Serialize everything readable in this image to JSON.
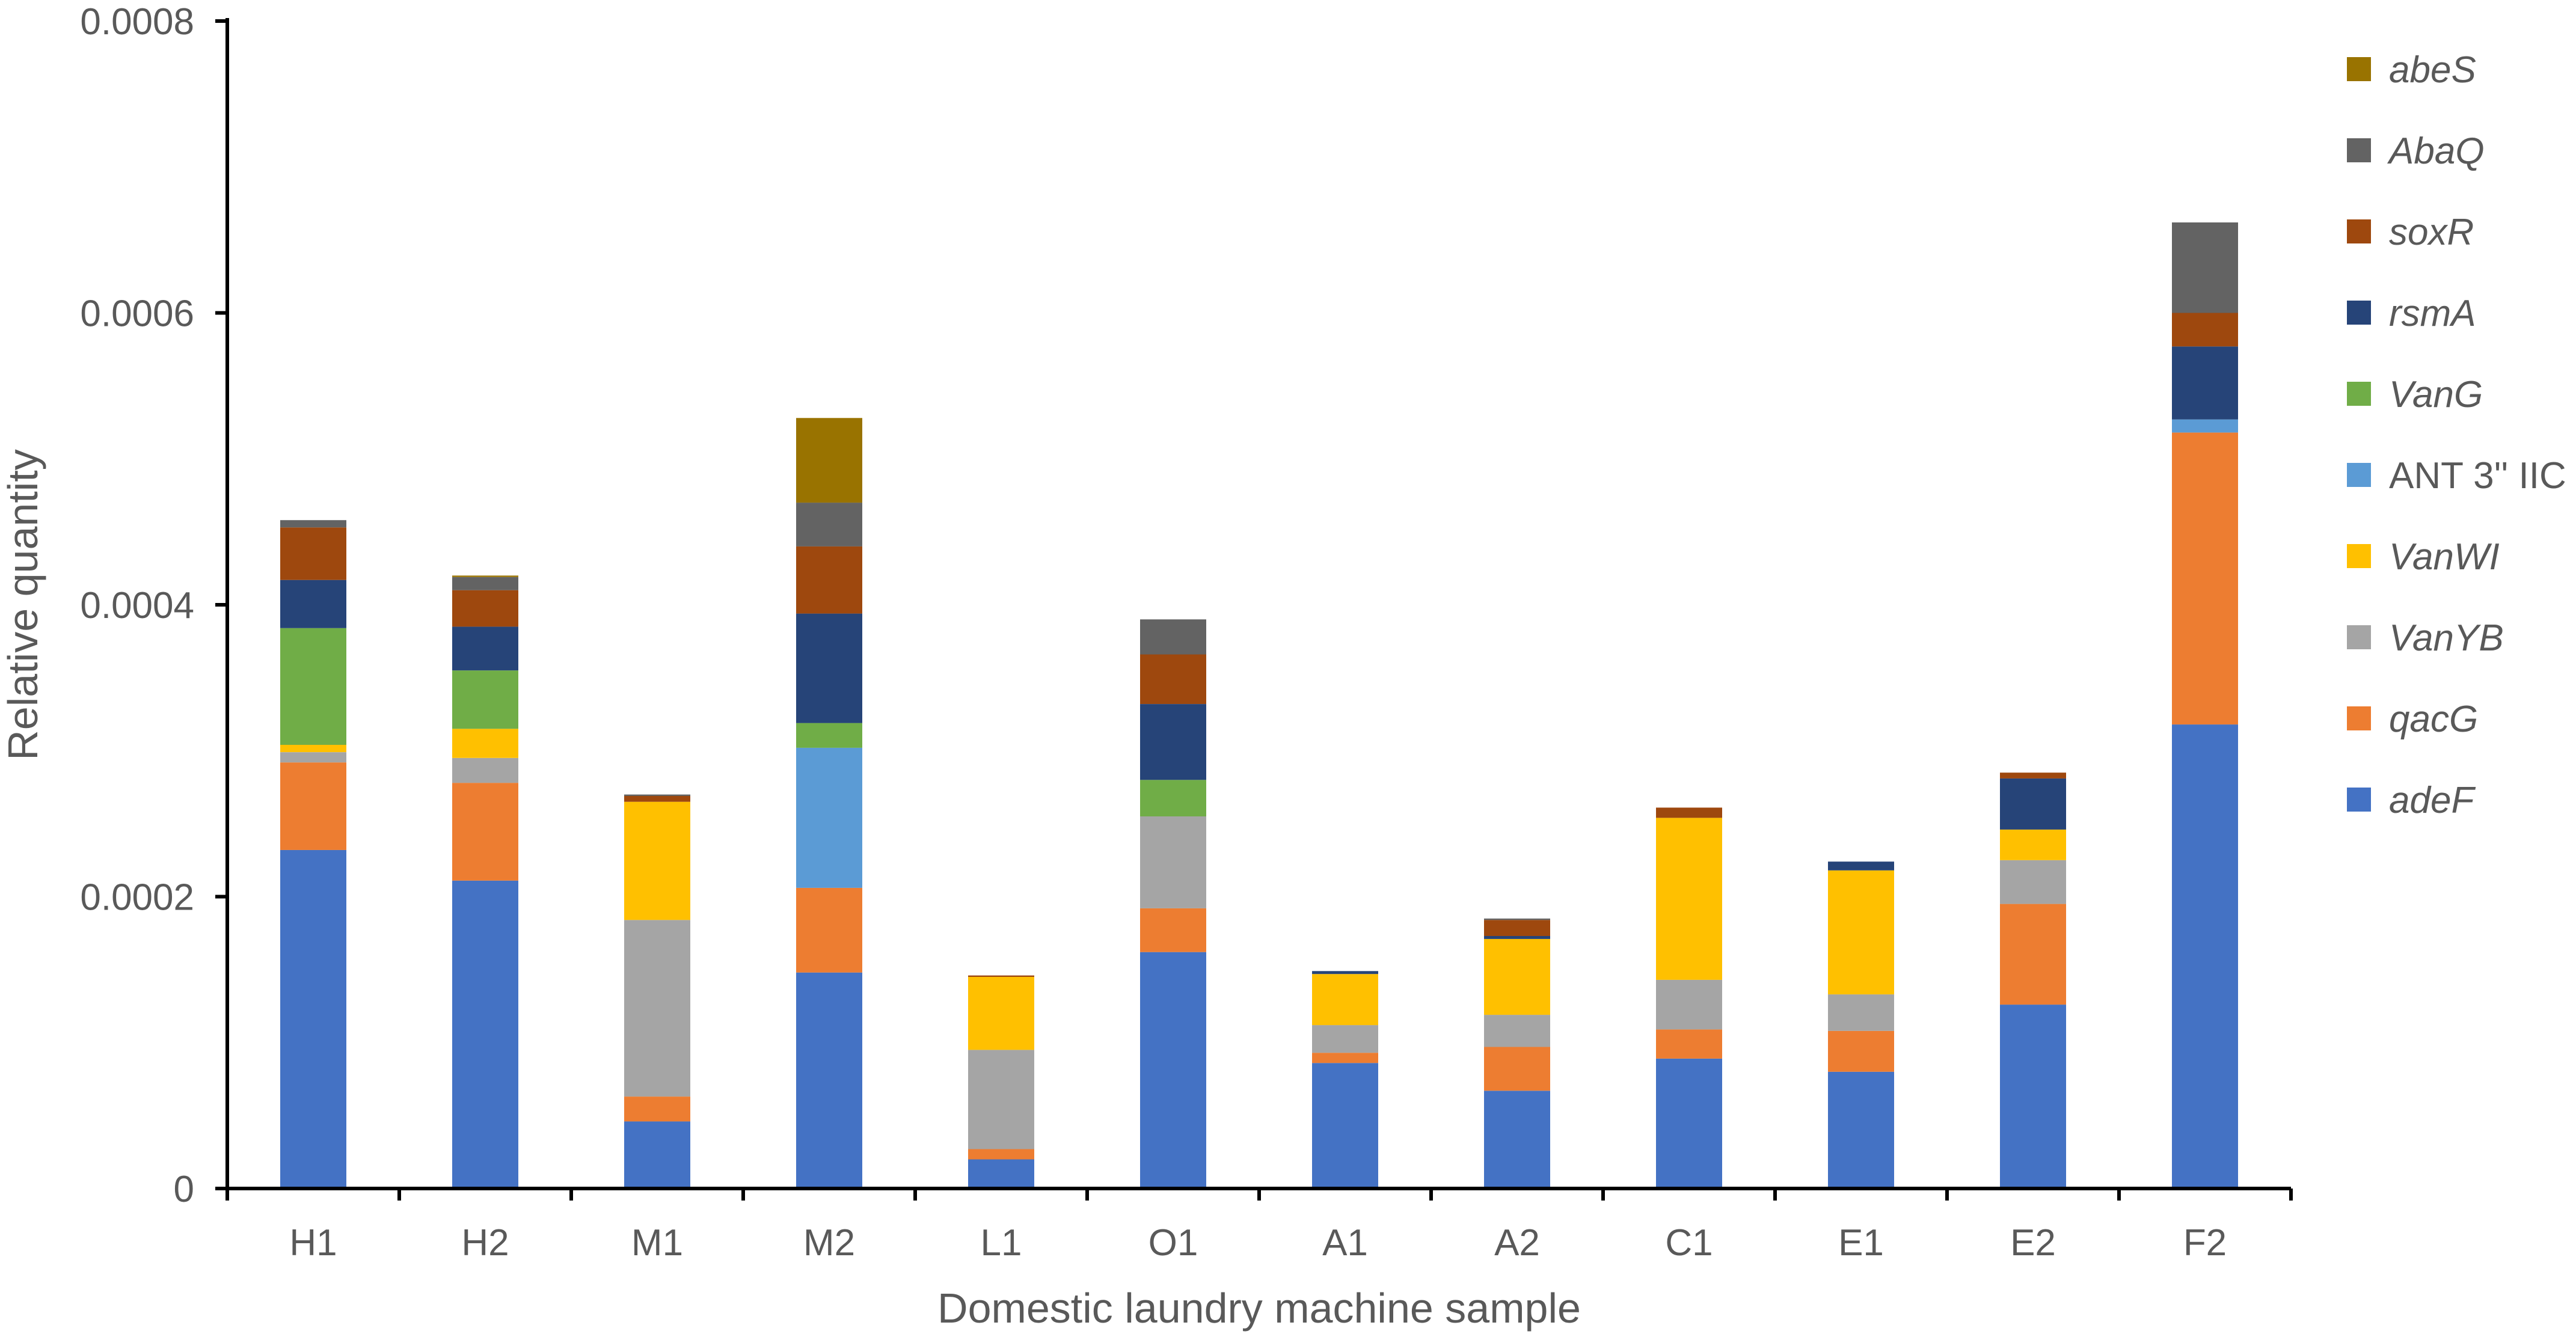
{
  "chart_data": {
    "type": "bar",
    "stacked": true,
    "xlabel": "Domestic laundry machine sample",
    "ylabel": "Relative quantity",
    "ylim": [
      0,
      0.0008
    ],
    "yticks": [
      "0",
      "0.0002",
      "0.0004",
      "0.0006",
      "0.0008"
    ],
    "grid": false,
    "legend_position": "right",
    "categories": [
      "H1",
      "H2",
      "M1",
      "M2",
      "L1",
      "O1",
      "A1",
      "A2",
      "C1",
      "E1",
      "E2",
      "F2"
    ],
    "series": [
      {
        "name": "adeF",
        "italic": true,
        "color": "#4472C4",
        "values": [
          0.000232,
          0.000211,
          4.6e-05,
          0.000148,
          2e-05,
          0.000162,
          8.6e-05,
          6.7e-05,
          8.9e-05,
          8e-05,
          0.000126,
          0.000318
        ]
      },
      {
        "name": "qacG",
        "italic": true,
        "color": "#ED7D31",
        "values": [
          6e-05,
          6.7e-05,
          1.7e-05,
          5.8e-05,
          7e-06,
          3e-05,
          7e-06,
          3e-05,
          2e-05,
          2.8e-05,
          6.9e-05,
          0.0002
        ]
      },
      {
        "name": "VanYB",
        "italic": true,
        "color": "#A5A5A5",
        "values": [
          7e-06,
          1.7e-05,
          0.000121,
          0,
          6.8e-05,
          6.3e-05,
          1.9e-05,
          2.2e-05,
          3.4e-05,
          2.5e-05,
          3e-05,
          0
        ]
      },
      {
        "name": "VanWI",
        "italic": true,
        "color": "#FFC000",
        "values": [
          5e-06,
          2e-05,
          8.1e-05,
          0,
          5e-05,
          0,
          3.5e-05,
          5.2e-05,
          0.000111,
          8.5e-05,
          2.1e-05,
          0
        ]
      },
      {
        "name": "ANT 3'' IIC",
        "italic": false,
        "color": "#5B9BD5",
        "values": [
          0,
          0,
          0,
          9.6e-05,
          0,
          0,
          0,
          0,
          0,
          0,
          0,
          9e-06
        ]
      },
      {
        "name": "VanG",
        "italic": true,
        "color": "#70AD47",
        "values": [
          8e-05,
          4e-05,
          0,
          1.7e-05,
          0,
          2.5e-05,
          0,
          0,
          0,
          0,
          0,
          0
        ]
      },
      {
        "name": "rsmA",
        "italic": true,
        "color": "#264478",
        "values": [
          3.3e-05,
          3e-05,
          0,
          7.5e-05,
          0,
          5.2e-05,
          2e-06,
          2e-06,
          0,
          6e-06,
          3.5e-05,
          5e-05
        ]
      },
      {
        "name": "soxR",
        "italic": true,
        "color": "#9E480E",
        "values": [
          3.6e-05,
          2.5e-05,
          4e-06,
          4.6e-05,
          1e-06,
          3.4e-05,
          0,
          1.1e-05,
          7e-06,
          0,
          4e-06,
          2.3e-05
        ]
      },
      {
        "name": "AbaQ",
        "italic": true,
        "color": "#636363",
        "values": [
          5e-06,
          9e-06,
          1e-06,
          3e-05,
          0,
          2.4e-05,
          0,
          1e-06,
          0,
          0,
          0,
          6.2e-05
        ]
      },
      {
        "name": "abeS",
        "italic": true,
        "color": "#997300",
        "values": [
          0,
          1e-06,
          0,
          5.8e-05,
          0,
          0,
          0,
          0,
          0,
          0,
          0,
          0
        ]
      }
    ]
  }
}
